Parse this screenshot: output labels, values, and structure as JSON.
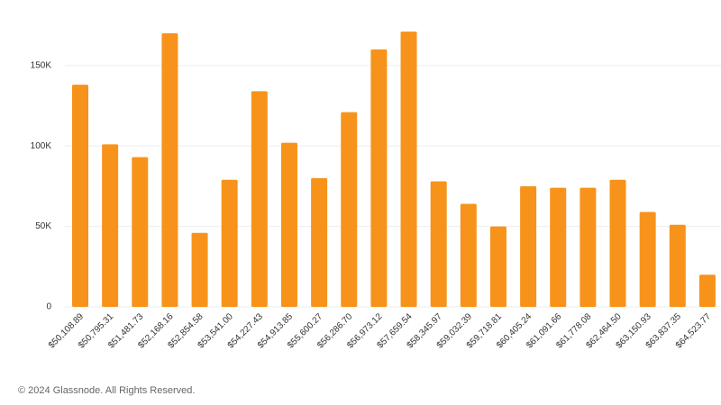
{
  "chart_data": {
    "type": "bar",
    "categories": [
      "$50,108.89",
      "$50,795.31",
      "$51,481.73",
      "$52,168.16",
      "$52,854.58",
      "$53,541.00",
      "$54,227.43",
      "$54,913.85",
      "$55,600.27",
      "$56,286.70",
      "$56,973.12",
      "$57,659.54",
      "$58,345.97",
      "$59,032.39",
      "$59,718.81",
      "$60,405.24",
      "$61,091.66",
      "$61,778.08",
      "$62,464.50",
      "$63,150.93",
      "$63,837.35",
      "$64,523.77"
    ],
    "values": [
      138000,
      101000,
      93000,
      170000,
      46000,
      79000,
      134000,
      102000,
      80000,
      121000,
      160000,
      171000,
      78000,
      64000,
      50000,
      75000,
      74000,
      74000,
      79000,
      59000,
      51000,
      20000
    ],
    "color": "#f7931a",
    "ylim": [
      0,
      175000
    ],
    "yticks": [
      0,
      {
        "value": 50000,
        "label": "50K"
      },
      {
        "value": 100000,
        "label": "100K"
      },
      {
        "value": 150000,
        "label": "150K"
      }
    ],
    "grid": true
  },
  "footer": "© 2024 Glassnode. All Rights Reserved."
}
